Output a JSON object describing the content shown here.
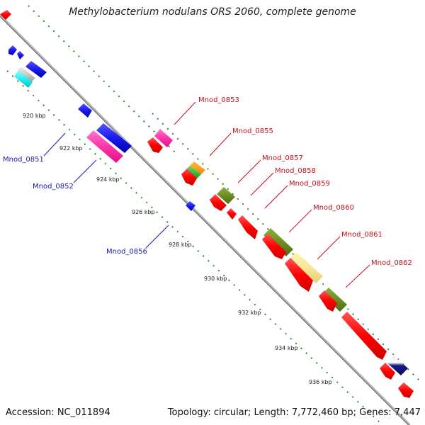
{
  "title": "Methylobacterium nodulans ORS 2060, complete genome",
  "accession": "Accession: NC_011894",
  "summary": "Topology: circular; Length: 7,772,460 bp; Genes: 7,447",
  "scale_labels": [
    "920 kbp",
    "922 kbp",
    "924 kbp",
    "926 kbp",
    "928 kbp",
    "930 kbp",
    "932 kbp",
    "934 kbp",
    "936 kbp"
  ],
  "gene_labels": {
    "g0851": "Mnod_0851",
    "g0852": "Mnod_0852",
    "g0853": "Mnod_0853",
    "g0855": "Mnod_0855",
    "g0856": "Mnod_0856",
    "g0857": "Mnod_0857",
    "g0858": "Mnod_0858",
    "g0859": "Mnod_0859",
    "g0860": "Mnod_0860",
    "g0861": "Mnod_0861",
    "g0862": "Mnod_0862"
  },
  "colors": {
    "cds_forward": "#ff0000",
    "cds_reverse": "#1a1aee",
    "label_forward": "#c4101a",
    "label_reverse": "#1a1aa8",
    "magenta": "#ff33aa",
    "olive": "#6b8e23",
    "khaki": "#f0e68c",
    "cyan": "#22eeee",
    "orange": "#ff9900",
    "green": "#33cc33",
    "navy": "#1a1a88",
    "tick_green": "#2a8a2a",
    "backbone": "#999999"
  }
}
